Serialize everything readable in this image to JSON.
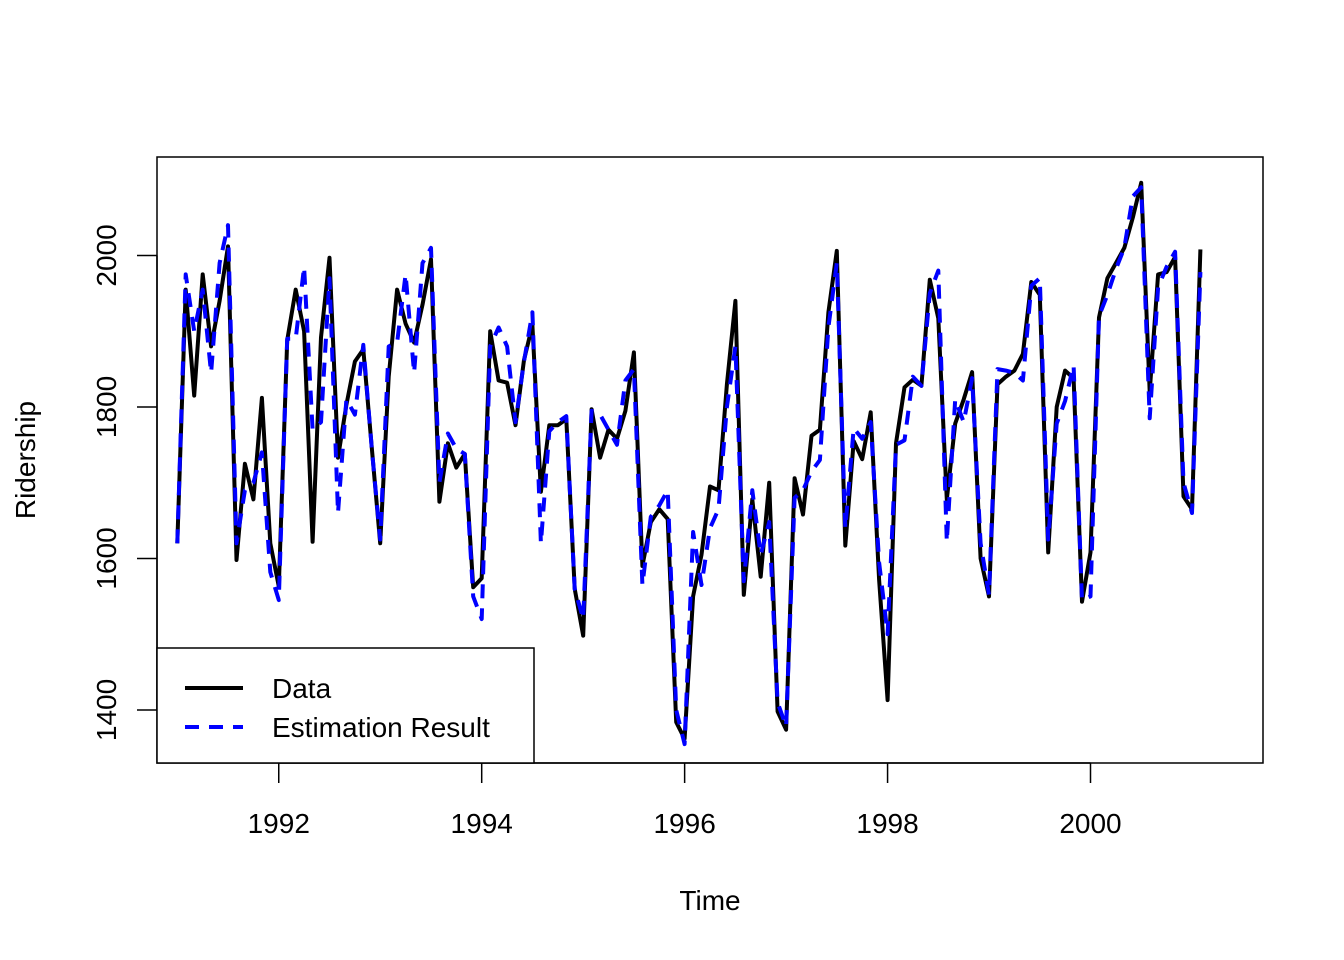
{
  "chart_data": {
    "type": "line",
    "title": "",
    "xlabel": "Time",
    "ylabel": "Ridership",
    "xlim": [
      1990.8,
      2001.7
    ],
    "ylim": [
      1330,
      2130
    ],
    "x_ticks": [
      "1992",
      "1994",
      "1996",
      "1998",
      "2000"
    ],
    "y_ticks": [
      "1400",
      "1600",
      "1800",
      "2000"
    ],
    "legend": {
      "position": "bottom-left",
      "entries": [
        "Data",
        "Estimation Result"
      ]
    },
    "grid": false,
    "start": "1991-01",
    "frequency": "monthly",
    "series": [
      {
        "name": "Data",
        "color": "#000000",
        "style": "solid",
        "values": [
          1620,
          1955,
          1815,
          1975,
          1880,
          1940,
          2012,
          1598,
          1725,
          1678,
          1812,
          1620,
          1563,
          1888,
          1955,
          1900,
          1622,
          1892,
          1997,
          1733,
          1803,
          1860,
          1876,
          1746,
          1620,
          1840,
          1955,
          1910,
          1885,
          1935,
          1995,
          1675,
          1752,
          1720,
          1738,
          1562,
          1574,
          1900,
          1835,
          1832,
          1776,
          1862,
          1908,
          1688,
          1776,
          1776,
          1784,
          1560,
          1498,
          1797,
          1733,
          1770,
          1758,
          1795,
          1872,
          1590,
          1648,
          1665,
          1652,
          1384,
          1362,
          1550,
          1605,
          1695,
          1690,
          1830,
          1940,
          1552,
          1678,
          1576,
          1700,
          1398,
          1374,
          1706,
          1658,
          1762,
          1770,
          1925,
          2006,
          1617,
          1755,
          1731,
          1793,
          1572,
          1413,
          1752,
          1826,
          1836,
          1828,
          1968,
          1917,
          1678,
          1778,
          1810,
          1846,
          1600,
          1550,
          1830,
          1840,
          1848,
          1870,
          1965,
          1948,
          1608,
          1800,
          1848,
          1838,
          1543,
          1608,
          1918,
          1970,
          1990,
          2010,
          2050,
          2096,
          1820,
          1975,
          1978,
          1998,
          1682,
          1665,
          2008
        ]
      },
      {
        "name": "Estimation Result",
        "color": "#0000ff",
        "style": "dashed",
        "values": [
          1620,
          1975,
          1900,
          1955,
          1845,
          1990,
          2040,
          1620,
          1690,
          1700,
          1740,
          1582,
          1545,
          1890,
          1890,
          1985,
          1770,
          1780,
          1970,
          1660,
          1810,
          1790,
          1882,
          1745,
          1625,
          1880,
          1885,
          1975,
          1845,
          1990,
          2010,
          1700,
          1765,
          1745,
          1738,
          1550,
          1520,
          1880,
          1905,
          1880,
          1780,
          1860,
          1925,
          1620,
          1768,
          1780,
          1788,
          1560,
          1520,
          1795,
          1790,
          1770,
          1750,
          1835,
          1850,
          1565,
          1655,
          1670,
          1690,
          1400,
          1355,
          1635,
          1565,
          1640,
          1665,
          1800,
          1880,
          1570,
          1690,
          1605,
          1648,
          1410,
          1378,
          1680,
          1690,
          1715,
          1730,
          1905,
          1990,
          1640,
          1772,
          1758,
          1780,
          1595,
          1500,
          1750,
          1756,
          1840,
          1828,
          1950,
          1980,
          1622,
          1810,
          1780,
          1838,
          1620,
          1552,
          1850,
          1848,
          1845,
          1835,
          1960,
          1970,
          1625,
          1778,
          1808,
          1855,
          1545,
          1550,
          1920,
          1948,
          1982,
          2010,
          2078,
          2090,
          1785,
          1958,
          1985,
          2005,
          1700,
          1660,
          1978
        ]
      }
    ]
  }
}
